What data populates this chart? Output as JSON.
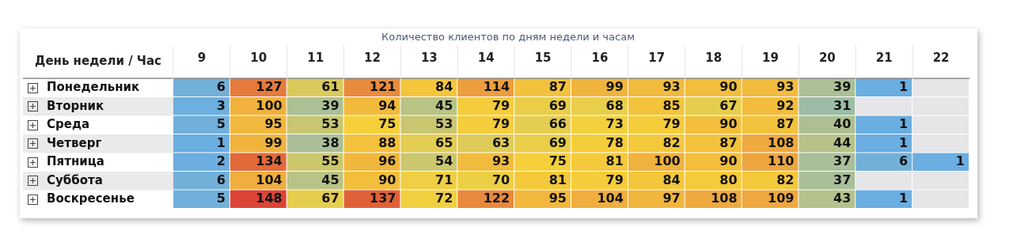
{
  "chart_data": {
    "type": "heatmap",
    "title": "Количество клиентов по дням недели и часам",
    "ylabel": "День недели / Час",
    "categories": [
      "9",
      "10",
      "11",
      "12",
      "13",
      "14",
      "15",
      "16",
      "17",
      "18",
      "19",
      "20",
      "21",
      "22"
    ],
    "y_categories": [
      "Понедельник",
      "Вторник",
      "Среда",
      "Четверг",
      "Пятница",
      "Суббота",
      "Воскресенье"
    ],
    "cells": [
      [
        6,
        127,
        61,
        121,
        84,
        114,
        87,
        99,
        93,
        90,
        93,
        39,
        1,
        null
      ],
      [
        3,
        100,
        39,
        94,
        45,
        79,
        69,
        68,
        85,
        67,
        92,
        31,
        null,
        null
      ],
      [
        5,
        95,
        53,
        75,
        53,
        79,
        66,
        73,
        79,
        90,
        87,
        40,
        1,
        null
      ],
      [
        1,
        99,
        38,
        88,
        65,
        63,
        69,
        78,
        82,
        87,
        108,
        44,
        1,
        null
      ],
      [
        2,
        134,
        55,
        96,
        54,
        93,
        75,
        81,
        100,
        90,
        110,
        37,
        6,
        1
      ],
      [
        6,
        104,
        45,
        90,
        71,
        70,
        81,
        79,
        84,
        80,
        82,
        37,
        null,
        null
      ],
      [
        5,
        148,
        67,
        137,
        72,
        122,
        95,
        104,
        97,
        108,
        109,
        43,
        1,
        null
      ]
    ],
    "colors": [
      "#6aaee2",
      "#a9bf98",
      "#f6d13a",
      "#eda53f",
      "#db4437"
    ],
    "data_labels": true
  }
}
